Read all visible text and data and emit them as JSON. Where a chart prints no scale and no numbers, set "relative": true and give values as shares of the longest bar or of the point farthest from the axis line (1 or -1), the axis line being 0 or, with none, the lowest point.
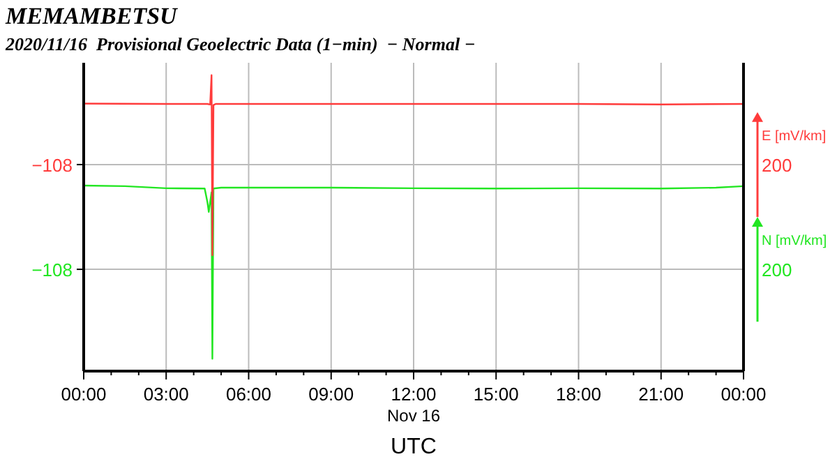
{
  "chart_data": {
    "type": "line",
    "title": "MEMAMBETSU",
    "subtitle": "2020/11/16  Provisional Geoelectric Data (1−min)  − Normal −",
    "xlabel": "UTC",
    "ylabel": "E [mV/km]",
    "y2label": "N [mV/km]",
    "annotations": [
      "Nov 16",
      "200",
      "200"
    ],
    "relative": true,
    "xlim": [
      0,
      24
    ],
    "xticks": [
      {
        "value": 0,
        "label": "00:00"
      },
      {
        "value": 1,
        "label": null
      },
      {
        "value": 2,
        "label": null
      },
      {
        "value": 3,
        "label": "03:00"
      },
      {
        "value": 4,
        "label": null
      },
      {
        "value": 5,
        "label": null
      },
      {
        "value": 6,
        "label": "06:00"
      },
      {
        "value": 7,
        "label": null
      },
      {
        "value": 8,
        "label": null
      },
      {
        "value": 9,
        "label": "09:00"
      },
      {
        "value": 10,
        "label": null
      },
      {
        "value": 11,
        "label": null
      },
      {
        "value": 12,
        "label": "12:00"
      },
      {
        "value": 13,
        "label": null
      },
      {
        "value": 14,
        "label": null
      },
      {
        "value": 15,
        "label": "15:00"
      },
      {
        "value": 16,
        "label": null
      },
      {
        "value": 17,
        "label": null
      },
      {
        "value": 18,
        "label": "18:00"
      },
      {
        "value": 19,
        "label": null
      },
      {
        "value": 20,
        "label": null
      },
      {
        "value": 21,
        "label": "21:00"
      },
      {
        "value": 22,
        "label": null
      },
      {
        "value": 23,
        "label": null
      },
      {
        "value": 24,
        "label": "00:00"
      }
    ],
    "ref_lines": [
      {
        "axis": "y",
        "value": 0.698,
        "label": "−108"
      },
      {
        "axis": "y",
        "value": 0.344,
        "label": "−108"
      }
    ],
    "grid": "x",
    "marker": "none",
    "series": [
      {
        "color": "#ff3b3b",
        "x": [
          0,
          3,
          4.5,
          4.6,
          4.65,
          4.68,
          4.72,
          4.8,
          6,
          9,
          12,
          15,
          18,
          21,
          24
        ],
        "values": [
          0.904,
          0.903,
          0.903,
          0.901,
          1,
          0.392,
          0.899,
          0.903,
          0.903,
          0.903,
          0.903,
          0.903,
          0.903,
          0.901,
          0.903
        ]
      },
      {
        "color": "#22e622",
        "x": [
          0,
          1.5,
          3,
          4.4,
          4.5,
          4.55,
          4.6,
          4.65,
          4.68,
          4.72,
          5,
          9,
          12,
          15,
          18,
          21,
          23,
          24
        ],
        "values": [
          0.627,
          0.625,
          0.618,
          0.617,
          0.571,
          0.538,
          0.571,
          0.604,
          0.042,
          0.617,
          0.62,
          0.62,
          0.618,
          0.617,
          0.618,
          0.617,
          0.62,
          0.625
        ]
      }
    ]
  }
}
